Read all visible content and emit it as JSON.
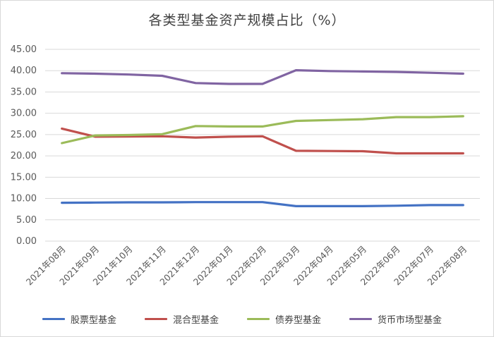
{
  "chart_data": {
    "type": "line",
    "title": "各类型基金资产规模占比（%）",
    "xlabel": "",
    "ylabel": "",
    "ylim": [
      0,
      45
    ],
    "yticks": [
      "0.00",
      "5.00",
      "10.00",
      "15.00",
      "20.00",
      "25.00",
      "30.00",
      "35.00",
      "40.00",
      "45.00"
    ],
    "grid": true,
    "legend_position": "bottom",
    "categories": [
      "2021年08月",
      "2021年09月",
      "2021年10月",
      "2021年11月",
      "2021年12月",
      "2022年01月",
      "2022年02月",
      "2022年03月",
      "2022年04月",
      "2022年05月",
      "2022年06月",
      "2022年07月",
      "2022年08月"
    ],
    "series": [
      {
        "name": "股票型基金",
        "color": "#4472c4",
        "values": [
          9.0,
          9.05,
          9.1,
          9.1,
          9.15,
          9.15,
          9.15,
          8.2,
          8.2,
          8.2,
          8.3,
          8.45,
          8.45
        ]
      },
      {
        "name": "混合型基金",
        "color": "#c0504d",
        "values": [
          26.4,
          24.5,
          24.55,
          24.6,
          24.3,
          24.5,
          24.6,
          21.2,
          21.15,
          21.1,
          20.6,
          20.6,
          20.6
        ]
      },
      {
        "name": "债券型基金",
        "color": "#9bbb59",
        "values": [
          23.0,
          24.8,
          24.9,
          25.1,
          27.0,
          26.9,
          26.9,
          28.2,
          28.4,
          28.6,
          29.1,
          29.1,
          29.3
        ]
      },
      {
        "name": "货币市场型基金",
        "color": "#8064a2",
        "values": [
          39.4,
          39.3,
          39.1,
          38.8,
          37.1,
          36.9,
          36.9,
          40.1,
          39.9,
          39.8,
          39.7,
          39.5,
          39.3
        ]
      }
    ]
  }
}
